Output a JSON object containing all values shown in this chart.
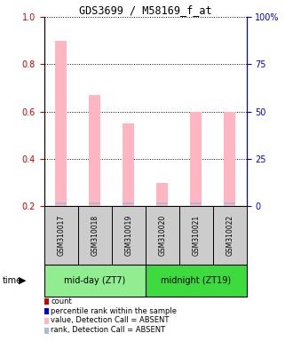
{
  "title": "GDS3699 / M58169_f_at",
  "samples": [
    "GSM310017",
    "GSM310018",
    "GSM310019",
    "GSM310020",
    "GSM310021",
    "GSM310022"
  ],
  "bar_values": [
    0.9,
    0.67,
    0.55,
    0.3,
    0.6,
    0.6
  ],
  "rank_values": [
    0.21,
    0.21,
    0.21,
    0.21,
    0.21,
    0.21
  ],
  "groups": [
    {
      "label": "mid-day (ZT7)",
      "color": "#90EE90",
      "samples": [
        0,
        1,
        2
      ]
    },
    {
      "label": "midnight (ZT19)",
      "color": "#3DDB3D",
      "samples": [
        3,
        4,
        5
      ]
    }
  ],
  "bar_color_absent": "#FFB6C1",
  "rank_color_absent": "#AABBDD",
  "ylim_left": [
    0.2,
    1.0
  ],
  "ylim_right": [
    0,
    100
  ],
  "yticks_left": [
    0.2,
    0.4,
    0.6,
    0.8,
    1.0
  ],
  "yticks_right": [
    0,
    25,
    50,
    75,
    100
  ],
  "left_axis_color": "#CC0000",
  "right_axis_color": "#0000CC",
  "grid_color": "#000000",
  "background_color": "#ffffff",
  "sample_box_color": "#CCCCCC",
  "legend_items": [
    {
      "color": "#CC0000",
      "label": "count"
    },
    {
      "color": "#0000CC",
      "label": "percentile rank within the sample"
    },
    {
      "color": "#FFB6C1",
      "label": "value, Detection Call = ABSENT"
    },
    {
      "color": "#AABBDD",
      "label": "rank, Detection Call = ABSENT"
    }
  ],
  "bar_width": 0.35
}
